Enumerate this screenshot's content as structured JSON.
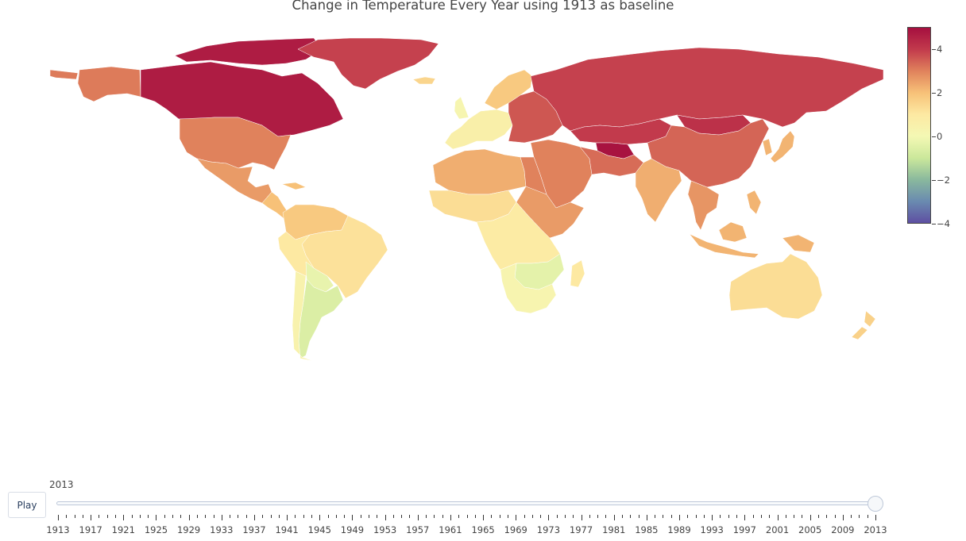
{
  "title": "Change in Temperature Every Year using 1913 as baseline",
  "colorscale": {
    "min": -4,
    "max": 5,
    "stops": [
      {
        "value": 5,
        "color": "#a50f3f"
      },
      {
        "value": 4,
        "color": "#c23a4c"
      },
      {
        "value": 3,
        "color": "#e0825c"
      },
      {
        "value": 2,
        "color": "#f7c178"
      },
      {
        "value": 1,
        "color": "#fde9a2"
      },
      {
        "value": 0,
        "color": "#f4f8b4"
      },
      {
        "value": -1,
        "color": "#cbe89b"
      },
      {
        "value": -2,
        "color": "#8ab99d"
      },
      {
        "value": -3,
        "color": "#6a8bb0"
      },
      {
        "value": -4,
        "color": "#5e4fa2"
      }
    ],
    "tick_labels": [
      "4",
      "2",
      "0",
      "−2",
      "−4"
    ],
    "tick_values": [
      4,
      2,
      0,
      -2,
      -4
    ]
  },
  "chart_data": {
    "type": "choropleth",
    "title": "Change in Temperature Every Year using 1913 as baseline",
    "year": "2013",
    "legend": "colorbar on right, range -4 to 5",
    "countries": [
      {
        "name": "Canada",
        "value": 4.7
      },
      {
        "name": "Greenland",
        "value": 3.9
      },
      {
        "name": "Alaska (USA)",
        "value": 3.1
      },
      {
        "name": "United States",
        "value": 3.0
      },
      {
        "name": "Mexico",
        "value": 2.6
      },
      {
        "name": "Central America",
        "value": 2.0
      },
      {
        "name": "Venezuela/Colombia",
        "value": 1.8
      },
      {
        "name": "Brazil",
        "value": 1.2
      },
      {
        "name": "Peru/Bolivia",
        "value": 1.0
      },
      {
        "name": "Paraguay",
        "value": -0.3
      },
      {
        "name": "Argentina",
        "value": -0.6
      },
      {
        "name": "Chile",
        "value": 0.4
      },
      {
        "name": "Iceland",
        "value": 1.5
      },
      {
        "name": "United Kingdom",
        "value": 0.2
      },
      {
        "name": "Western Europe",
        "value": 0.6
      },
      {
        "name": "Scandinavia",
        "value": 1.8
      },
      {
        "name": "Eastern Europe",
        "value": 3.6
      },
      {
        "name": "Russia",
        "value": 3.9
      },
      {
        "name": "Kazakhstan",
        "value": 4.0
      },
      {
        "name": "Uzbekistan/Turkmenistan",
        "value": 4.9
      },
      {
        "name": "Mongolia",
        "value": 4.2
      },
      {
        "name": "China",
        "value": 3.4
      },
      {
        "name": "Japan",
        "value": 2.2
      },
      {
        "name": "Middle East",
        "value": 3.0
      },
      {
        "name": "Iran/Afghanistan",
        "value": 3.3
      },
      {
        "name": "India",
        "value": 2.3
      },
      {
        "name": "Southeast Asia",
        "value": 2.7
      },
      {
        "name": "Indonesia",
        "value": 2.2
      },
      {
        "name": "North Africa",
        "value": 2.3
      },
      {
        "name": "Egypt",
        "value": 3.0
      },
      {
        "name": "West Africa",
        "value": 1.3
      },
      {
        "name": "Horn of Africa",
        "value": 2.6
      },
      {
        "name": "Central Africa",
        "value": 0.9
      },
      {
        "name": "Zambia/Zimbabwe",
        "value": -0.4
      },
      {
        "name": "Southern Africa",
        "value": 0.3
      },
      {
        "name": "Madagascar",
        "value": 1.0
      },
      {
        "name": "Australia",
        "value": 1.3
      },
      {
        "name": "New Zealand",
        "value": 1.6
      }
    ]
  },
  "slider": {
    "current_label": "2013",
    "play_label": "Play",
    "value": 2013,
    "min": 1913,
    "max": 2013,
    "major_labels": [
      "1913",
      "1917",
      "1921",
      "1925",
      "1929",
      "1933",
      "1937",
      "1941",
      "1945",
      "1949",
      "1953",
      "1957",
      "1961",
      "1965",
      "1969",
      "1973",
      "1977",
      "1981",
      "1985",
      "1989",
      "1993",
      "1997",
      "2001",
      "2005",
      "2009",
      "2013"
    ]
  }
}
